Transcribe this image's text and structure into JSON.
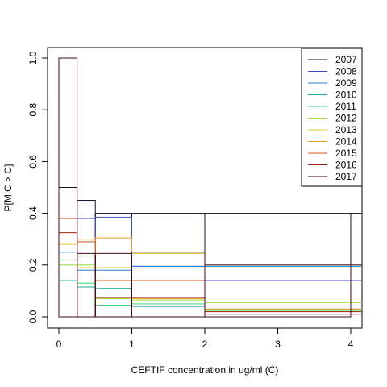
{
  "chart_data": {
    "type": "line",
    "step": true,
    "title": "",
    "xlabel": "CEFTIF concentration in ug/ml (C)",
    "ylabel": "P[MIC > C]",
    "xlim": [
      0,
      4
    ],
    "ylim": [
      0,
      1
    ],
    "xticks": [
      "0",
      "1",
      "2",
      "3",
      "4"
    ],
    "yticks": [
      "0.0",
      "0.2",
      "0.4",
      "0.6",
      "0.8",
      "1.0"
    ],
    "grid": false,
    "legend_position": "top-right",
    "series": [
      {
        "name": "2007",
        "color": "#1a0d2e",
        "x": [
          0,
          0.25,
          0.5,
          1,
          2,
          4
        ],
        "y": [
          0.5,
          0.45,
          0.4,
          0.4,
          0.4,
          0.4
        ]
      },
      {
        "name": "2008",
        "color": "#3b4cc0",
        "x": [
          0,
          0.25,
          0.5,
          1,
          2,
          4
        ],
        "y": [
          0.38,
          0.38,
          0.385,
          0.195,
          0.14,
          0.14
        ]
      },
      {
        "name": "2009",
        "color": "#2a7fc9",
        "x": [
          0,
          0.25,
          0.5,
          1,
          2,
          4
        ],
        "y": [
          0.25,
          0.18,
          0.18,
          0.195,
          0.195,
          0.195
        ]
      },
      {
        "name": "2010",
        "color": "#1fb0a8",
        "x": [
          0,
          0.25,
          0.5,
          1,
          2,
          4
        ],
        "y": [
          0.14,
          0.115,
          0.11,
          0.04,
          0.03,
          0.03
        ]
      },
      {
        "name": "2011",
        "color": "#3fd47a",
        "x": [
          0,
          0.25,
          0.5,
          1,
          2,
          4
        ],
        "y": [
          0.22,
          0.13,
          0.045,
          0.05,
          0.025,
          0.025
        ]
      },
      {
        "name": "2012",
        "color": "#9bdc3a",
        "x": [
          0,
          0.25,
          0.5,
          1,
          2,
          4
        ],
        "y": [
          0.2,
          0.2,
          0.07,
          0.065,
          0.055,
          0.055
        ]
      },
      {
        "name": "2013",
        "color": "#e2c92a",
        "x": [
          0,
          0.25,
          0.5,
          1,
          2,
          4
        ],
        "y": [
          0.28,
          0.19,
          0.19,
          0.245,
          0.02,
          0.02
        ]
      },
      {
        "name": "2014",
        "color": "#e89b2a",
        "x": [
          0,
          0.25,
          0.5,
          1,
          2,
          4
        ],
        "y": [
          0.38,
          0.3,
          0.305,
          0.07,
          0.03,
          0.03
        ]
      },
      {
        "name": "2015",
        "color": "#d9531e",
        "x": [
          0,
          0.25,
          0.5,
          1,
          2,
          4
        ],
        "y": [
          0.38,
          0.29,
          0.14,
          0.14,
          0.01,
          0.01
        ]
      },
      {
        "name": "2016",
        "color": "#a0200f",
        "x": [
          0,
          0.25,
          0.5,
          1,
          2,
          4
        ],
        "y": [
          0.325,
          0.235,
          0.075,
          0.075,
          0.02,
          0.02
        ]
      },
      {
        "name": "2017",
        "color": "#3a0a14",
        "x": [
          0,
          0.25,
          0.5,
          1,
          2,
          4
        ],
        "y": [
          1.0,
          0.245,
          0.245,
          0.25,
          0.2,
          0.2
        ]
      }
    ]
  }
}
